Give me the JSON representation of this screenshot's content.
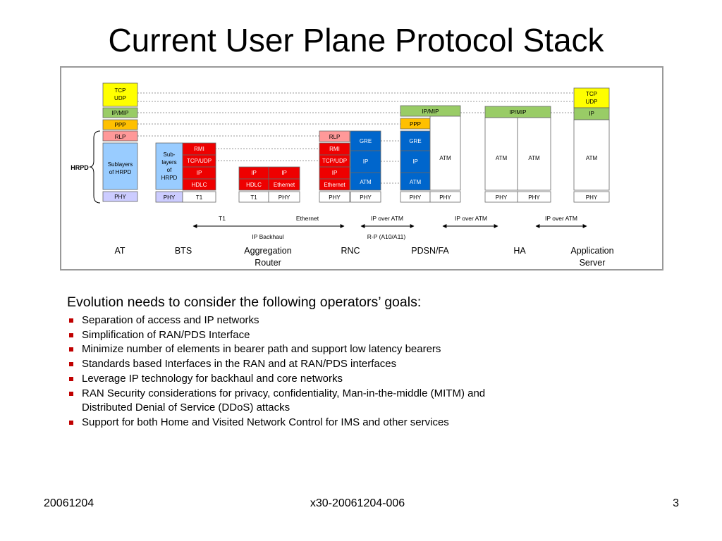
{
  "title": "Current User Plane Protocol Stack",
  "diagram": {
    "hrpd_label": "HRPD",
    "layers": {
      "tcp": "TCP",
      "udp": "UDP",
      "ipmip": "IP/MIP",
      "ppp": "PPP",
      "rlp": "RLP",
      "sublayers_line1": "Sublayers",
      "sublayers_line2": "of HRPD",
      "bts_sub_1": "Sub-",
      "bts_sub_2": "layers",
      "bts_sub_3": "of",
      "bts_sub_4": "HRPD",
      "phy": "PHY",
      "rmi": "RMI",
      "tcpudp": "TCP/UDP",
      "ip": "IP",
      "hdlc": "HDLC",
      "t1": "T1",
      "ethernet": "Ethernet",
      "gre": "GRE",
      "atm": "ATM"
    },
    "links": {
      "t1": "T1",
      "ethernet": "Ethernet",
      "ip_backhaul": "IP Backhaul",
      "ip_over_atm_1": "IP over ATM",
      "rp_interface": "R-P (A10/A11)",
      "ip_over_atm_2": "IP over ATM",
      "ip_over_atm_3": "IP over ATM"
    },
    "nodes": {
      "at": "AT",
      "bts": "BTS",
      "agg_line1": "Aggregation",
      "agg_line2": "Router",
      "rnc": "RNC",
      "pdsn": "PDSN/FA",
      "ha": "HA",
      "app_line1": "Application",
      "app_line2": "Server"
    }
  },
  "colors": {
    "yellow": "#ffff00",
    "green": "#99cc66",
    "orange": "#ffc000",
    "salmon": "#ff9999",
    "light_blue": "#99ccff",
    "lavender": "#ccccff",
    "red": "#ee0000",
    "blue": "#0066cc",
    "border": "#999999"
  },
  "bullets": {
    "heading": "Evolution needs to consider the following operators’ goals:",
    "items": [
      "Separation of access and IP networks",
      "Simplification of RAN/PDS Interface",
      "Minimize number of elements in bearer path and support low latency bearers",
      "Standards based Interfaces in the RAN and at RAN/PDS interfaces",
      "Leverage IP technology for backhaul and core networks",
      "RAN Security considerations for privacy, confidentiality, Man-in-the-middle (MITM) and Distributed Denial of Service (DDoS) attacks",
      "Support for both Home and Visited Network Control for IMS and other services"
    ]
  },
  "footer": {
    "date": "20061204",
    "doc_id": "x30-20061204-006",
    "page": "3"
  }
}
